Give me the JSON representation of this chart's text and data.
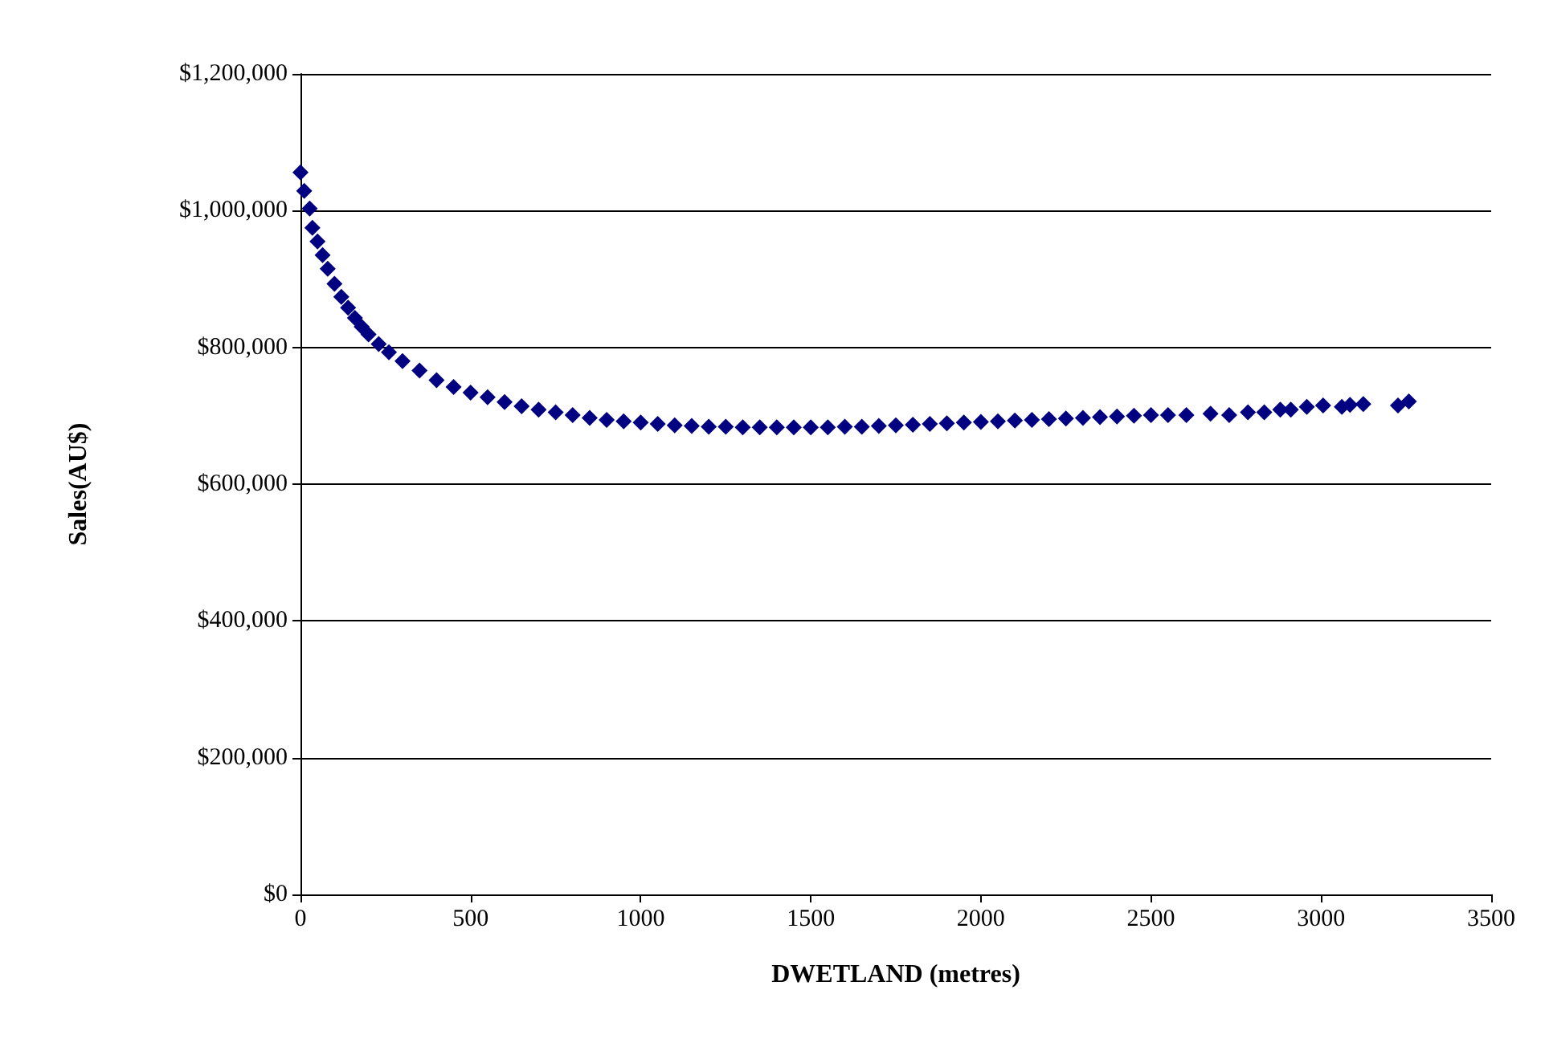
{
  "chart_data": {
    "type": "scatter",
    "xlabel": "DWETLAND (metres)",
    "ylabel": "Sales(AU$)",
    "marker": "diamond",
    "grid": "y",
    "xlim": [
      0,
      3500
    ],
    "xticks": [
      0,
      500,
      1000,
      1500,
      2000,
      2500,
      3000,
      3500
    ],
    "ylim": [
      0,
      1200000
    ],
    "yticks": [
      {
        "value": 0,
        "label": "$0"
      },
      {
        "value": 200000,
        "label": "$200,000"
      },
      {
        "value": 400000,
        "label": "$400,000"
      },
      {
        "value": 600000,
        "label": "$600,000"
      },
      {
        "value": 800000,
        "label": "$800,000"
      },
      {
        "value": 1000000,
        "label": "$1,000,000"
      },
      {
        "value": 1200000,
        "label": "$1,200,000"
      }
    ],
    "series": [
      {
        "color": "#000080",
        "x": [
          0,
          11,
          27,
          35,
          50,
          65,
          80,
          100,
          120,
          140,
          160,
          180,
          200,
          230,
          260,
          300,
          350,
          400,
          450,
          500,
          550,
          600,
          650,
          700,
          750,
          800,
          850,
          900,
          950,
          1000,
          1050,
          1100,
          1150,
          1200,
          1250,
          1300,
          1350,
          1400,
          1450,
          1500,
          1550,
          1600,
          1650,
          1700,
          1750,
          1800,
          1850,
          1900,
          1950,
          2000,
          2050,
          2100,
          2150,
          2200,
          2250,
          2300,
          2350,
          2400,
          2450,
          2500,
          2550,
          2604,
          2675,
          2730,
          2785,
          2833,
          2880,
          2911,
          2958,
          3006,
          3061,
          3085,
          3124,
          3226,
          3258
        ],
        "values": [
          1056000,
          1029000,
          1003000,
          975000,
          955000,
          935000,
          915000,
          893000,
          874000,
          858000,
          843000,
          830000,
          819000,
          805000,
          793000,
          780000,
          766000,
          752000,
          742000,
          734000,
          727000,
          720000,
          714000,
          709000,
          705000,
          701000,
          697000,
          694000,
          692000,
          690000,
          688000,
          686000,
          685000,
          684000,
          684000,
          683000,
          683000,
          683000,
          683000,
          683000,
          683000,
          684000,
          684000,
          685000,
          686000,
          687000,
          688000,
          689000,
          690000,
          691000,
          692000,
          693000,
          694000,
          695000,
          696000,
          697000,
          698000,
          699000,
          700000,
          701000,
          701000,
          701000,
          703000,
          701000,
          705000,
          705000,
          709000,
          709000,
          713000,
          715000,
          713000,
          716000,
          717000,
          715000,
          721000
        ]
      }
    ]
  }
}
